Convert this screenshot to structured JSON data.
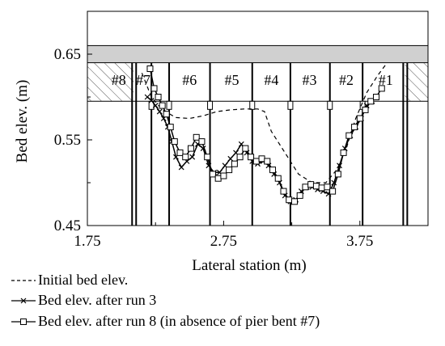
{
  "chart_data": {
    "type": "line",
    "xlabel": "Lateral station (m)",
    "ylabel": "Bed elev. (m)",
    "xlim": [
      1.75,
      4.25
    ],
    "ylim": [
      0.45,
      0.7
    ],
    "x_ticks": [
      "1.75",
      "2.75",
      "3.75"
    ],
    "y_ticks": [
      "0.45",
      "0.55",
      "0.65"
    ],
    "grid": false,
    "legend_position": "bottom-left, below plot",
    "bent_labels": [
      "#8",
      "#7",
      "#6",
      "#5",
      "#4",
      "#3",
      "#2",
      "#1"
    ],
    "deck": {
      "bottom": 0.64,
      "top": 0.66,
      "color": "#d0d0d0"
    },
    "abutment_hatch_below": 0.595,
    "piers": [
      {
        "x": 2.09,
        "double": true
      },
      {
        "x": 2.22,
        "double": false
      },
      {
        "x": 2.35,
        "double": false
      },
      {
        "x": 2.65,
        "double": false
      },
      {
        "x": 2.96,
        "double": false
      },
      {
        "x": 3.24,
        "double": false
      },
      {
        "x": 3.53,
        "double": false
      },
      {
        "x": 3.77,
        "double": false
      },
      {
        "x": 4.08,
        "double": true
      }
    ],
    "series": [
      {
        "name": "Initial bed elev.",
        "style": "dashed",
        "marker": "none",
        "x": [
          2.15,
          2.22,
          2.3,
          2.4,
          2.5,
          2.6,
          2.7,
          2.8,
          2.9,
          3.0,
          3.05,
          3.1,
          3.2,
          3.3,
          3.4,
          3.5,
          3.58,
          3.65,
          3.72,
          3.8,
          3.88,
          3.95
        ],
        "y": [
          0.628,
          0.6,
          0.585,
          0.576,
          0.575,
          0.578,
          0.583,
          0.585,
          0.586,
          0.586,
          0.583,
          0.56,
          0.535,
          0.51,
          0.5,
          0.5,
          0.515,
          0.54,
          0.575,
          0.605,
          0.625,
          0.64
        ]
      },
      {
        "name": "Bed elev. after run 3",
        "style": "solid",
        "marker": "x",
        "x": [
          2.19,
          2.22,
          2.25,
          2.28,
          2.31,
          2.34,
          2.37,
          2.4,
          2.44,
          2.48,
          2.52,
          2.56,
          2.6,
          2.64,
          2.68,
          2.72,
          2.76,
          2.8,
          2.84,
          2.88,
          2.92,
          2.96,
          3.0,
          3.04,
          3.08,
          3.12,
          3.16,
          3.2,
          3.24,
          3.28,
          3.32,
          3.36,
          3.4,
          3.44,
          3.48,
          3.52,
          3.56,
          3.6,
          3.64,
          3.68,
          3.72,
          3.76,
          3.8,
          3.84
        ],
        "y": [
          0.6,
          0.596,
          0.59,
          0.583,
          0.575,
          0.565,
          0.548,
          0.53,
          0.518,
          0.525,
          0.53,
          0.545,
          0.54,
          0.52,
          0.512,
          0.512,
          0.52,
          0.528,
          0.535,
          0.545,
          0.535,
          0.525,
          0.522,
          0.525,
          0.52,
          0.51,
          0.5,
          0.485,
          0.478,
          0.48,
          0.49,
          0.495,
          0.495,
          0.492,
          0.49,
          0.487,
          0.5,
          0.52,
          0.54,
          0.555,
          0.565,
          0.575,
          0.59,
          0.595
        ]
      },
      {
        "name": "Bed elev. after run 8 (in absence of pier bent #7)",
        "style": "solid",
        "marker": "square",
        "x": [
          2.21,
          2.24,
          2.27,
          2.3,
          2.33,
          2.36,
          2.39,
          2.43,
          2.47,
          2.51,
          2.55,
          2.59,
          2.63,
          2.67,
          2.71,
          2.75,
          2.79,
          2.83,
          2.87,
          2.91,
          2.95,
          2.99,
          3.03,
          3.07,
          3.11,
          3.15,
          3.19,
          3.23,
          3.27,
          3.31,
          3.35,
          3.39,
          3.43,
          3.47,
          3.51,
          3.55,
          3.59,
          3.63,
          3.67,
          3.71,
          3.75,
          3.79,
          3.83,
          3.87,
          3.91
        ],
        "y": [
          0.633,
          0.61,
          0.6,
          0.59,
          0.58,
          0.565,
          0.548,
          0.535,
          0.53,
          0.54,
          0.553,
          0.548,
          0.53,
          0.51,
          0.505,
          0.508,
          0.515,
          0.522,
          0.53,
          0.54,
          0.53,
          0.525,
          0.528,
          0.525,
          0.515,
          0.505,
          0.49,
          0.48,
          0.478,
          0.485,
          0.495,
          0.498,
          0.496,
          0.494,
          0.495,
          0.49,
          0.51,
          0.535,
          0.555,
          0.565,
          0.575,
          0.585,
          0.595,
          0.6,
          0.61
        ]
      }
    ]
  }
}
